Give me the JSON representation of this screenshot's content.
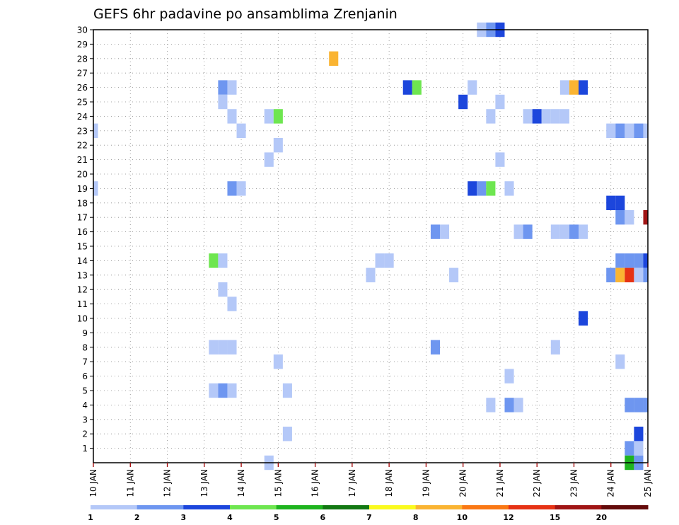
{
  "chart_data": {
    "type": "heatmap",
    "title": "GEFS 6hr padavine po ansamblima Zrenjanin",
    "x_tick_labels": [
      "10 JAN",
      "11 JAN",
      "12 JAN",
      "13 JAN",
      "14 JAN",
      "15 JAN",
      "16 JAN",
      "17 JAN",
      "18 JAN",
      "19 JAN",
      "20 JAN",
      "21 JAN",
      "22 JAN",
      "23 JAN",
      "24 JAN",
      "25 JAN"
    ],
    "y_tick_labels": [
      "1",
      "2",
      "3",
      "4",
      "5",
      "6",
      "7",
      "8",
      "9",
      "10",
      "11",
      "12",
      "13",
      "14",
      "15",
      "16",
      "17",
      "18",
      "19",
      "20",
      "21",
      "22",
      "23",
      "24",
      "25",
      "26",
      "27",
      "28",
      "29",
      "30"
    ],
    "x_range_steps": [
      0,
      60
    ],
    "y_range_members": [
      0,
      30
    ],
    "grid": "dotted",
    "colorbar": {
      "levels": [
        "1",
        "2",
        "3",
        "4",
        "5",
        "6",
        "7",
        "8",
        "10",
        "12",
        "15",
        "20"
      ],
      "colors": [
        "#b4c8f8",
        "#6e96f0",
        "#1c46dc",
        "#6ee650",
        "#1eb41e",
        "#127812",
        "#fafa1e",
        "#fab432",
        "#fa7814",
        "#e63214",
        "#a01414",
        "#640a0a"
      ]
    },
    "cells": [
      {
        "m": 30,
        "s": 42,
        "c": 0
      },
      {
        "m": 30,
        "s": 43,
        "c": 1
      },
      {
        "m": 30,
        "s": 44,
        "c": 2
      },
      {
        "m": 28,
        "s": 26,
        "c": 7
      },
      {
        "m": 26,
        "s": 14,
        "c": 1
      },
      {
        "m": 26,
        "s": 15,
        "c": 0
      },
      {
        "m": 26,
        "s": 34,
        "c": 2
      },
      {
        "m": 26,
        "s": 35,
        "c": 3
      },
      {
        "m": 26,
        "s": 41,
        "c": 0
      },
      {
        "m": 26,
        "s": 51,
        "c": 0
      },
      {
        "m": 26,
        "s": 52,
        "c": 7
      },
      {
        "m": 26,
        "s": 53,
        "c": 2
      },
      {
        "m": 25,
        "s": 14,
        "c": 0
      },
      {
        "m": 25,
        "s": 40,
        "c": 2
      },
      {
        "m": 25,
        "s": 44,
        "c": 0
      },
      {
        "m": 24,
        "s": 15,
        "c": 0
      },
      {
        "m": 24,
        "s": 19,
        "c": 0
      },
      {
        "m": 24,
        "s": 20,
        "c": 3
      },
      {
        "m": 24,
        "s": 43,
        "c": 0
      },
      {
        "m": 24,
        "s": 47,
        "c": 0
      },
      {
        "m": 24,
        "s": 48,
        "c": 2
      },
      {
        "m": 24,
        "s": 49,
        "c": 0
      },
      {
        "m": 24,
        "s": 50,
        "c": 0
      },
      {
        "m": 24,
        "s": 51,
        "c": 0
      },
      {
        "m": 23,
        "s": 0,
        "c": 0
      },
      {
        "m": 23,
        "s": 16,
        "c": 0
      },
      {
        "m": 23,
        "s": 56,
        "c": 0
      },
      {
        "m": 23,
        "s": 57,
        "c": 1
      },
      {
        "m": 23,
        "s": 58,
        "c": 0
      },
      {
        "m": 23,
        "s": 59,
        "c": 1
      },
      {
        "m": 23,
        "s": 60,
        "c": 0
      },
      {
        "m": 22,
        "s": 20,
        "c": 0
      },
      {
        "m": 21,
        "s": 19,
        "c": 0
      },
      {
        "m": 21,
        "s": 44,
        "c": 0
      },
      {
        "m": 19,
        "s": 0,
        "c": 0
      },
      {
        "m": 19,
        "s": 15,
        "c": 1
      },
      {
        "m": 19,
        "s": 16,
        "c": 0
      },
      {
        "m": 19,
        "s": 41,
        "c": 2
      },
      {
        "m": 19,
        "s": 42,
        "c": 1
      },
      {
        "m": 19,
        "s": 43,
        "c": 3
      },
      {
        "m": 19,
        "s": 45,
        "c": 0
      },
      {
        "m": 18,
        "s": 56,
        "c": 2
      },
      {
        "m": 18,
        "s": 57,
        "c": 2
      },
      {
        "m": 17,
        "s": 57,
        "c": 1
      },
      {
        "m": 17,
        "s": 58,
        "c": 0
      },
      {
        "m": 17,
        "s": 60,
        "c": 10
      },
      {
        "m": 16,
        "s": 37,
        "c": 1
      },
      {
        "m": 16,
        "s": 38,
        "c": 0
      },
      {
        "m": 16,
        "s": 46,
        "c": 0
      },
      {
        "m": 16,
        "s": 47,
        "c": 1
      },
      {
        "m": 16,
        "s": 50,
        "c": 0
      },
      {
        "m": 16,
        "s": 51,
        "c": 0
      },
      {
        "m": 16,
        "s": 52,
        "c": 1
      },
      {
        "m": 16,
        "s": 53,
        "c": 0
      },
      {
        "m": 14,
        "s": 13,
        "c": 3
      },
      {
        "m": 14,
        "s": 14,
        "c": 0
      },
      {
        "m": 14,
        "s": 31,
        "c": 0
      },
      {
        "m": 14,
        "s": 32,
        "c": 0
      },
      {
        "m": 14,
        "s": 57,
        "c": 1
      },
      {
        "m": 14,
        "s": 58,
        "c": 1
      },
      {
        "m": 14,
        "s": 59,
        "c": 1
      },
      {
        "m": 14,
        "s": 60,
        "c": 2
      },
      {
        "m": 13,
        "s": 30,
        "c": 0
      },
      {
        "m": 13,
        "s": 39,
        "c": 0
      },
      {
        "m": 13,
        "s": 56,
        "c": 1
      },
      {
        "m": 13,
        "s": 57,
        "c": 7
      },
      {
        "m": 13,
        "s": 58,
        "c": 9
      },
      {
        "m": 13,
        "s": 59,
        "c": 0
      },
      {
        "m": 13,
        "s": 60,
        "c": 1
      },
      {
        "m": 12,
        "s": 14,
        "c": 0
      },
      {
        "m": 11,
        "s": 15,
        "c": 0
      },
      {
        "m": 10,
        "s": 53,
        "c": 2
      },
      {
        "m": 8,
        "s": 13,
        "c": 0
      },
      {
        "m": 8,
        "s": 14,
        "c": 0
      },
      {
        "m": 8,
        "s": 15,
        "c": 0
      },
      {
        "m": 8,
        "s": 37,
        "c": 1
      },
      {
        "m": 8,
        "s": 50,
        "c": 0
      },
      {
        "m": 7,
        "s": 20,
        "c": 0
      },
      {
        "m": 7,
        "s": 57,
        "c": 0
      },
      {
        "m": 6,
        "s": 45,
        "c": 0
      },
      {
        "m": 5,
        "s": 13,
        "c": 0
      },
      {
        "m": 5,
        "s": 14,
        "c": 1
      },
      {
        "m": 5,
        "s": 15,
        "c": 0
      },
      {
        "m": 5,
        "s": 21,
        "c": 0
      },
      {
        "m": 4,
        "s": 43,
        "c": 0
      },
      {
        "m": 4,
        "s": 45,
        "c": 1
      },
      {
        "m": 4,
        "s": 46,
        "c": 0
      },
      {
        "m": 4,
        "s": 58,
        "c": 1
      },
      {
        "m": 4,
        "s": 59,
        "c": 1
      },
      {
        "m": 4,
        "s": 60,
        "c": 1
      },
      {
        "m": 2,
        "s": 21,
        "c": 0
      },
      {
        "m": 2,
        "s": 59,
        "c": 2
      },
      {
        "m": 1,
        "s": 58,
        "c": 1
      },
      {
        "m": 1,
        "s": 59,
        "c": 0
      },
      {
        "m": 0,
        "s": 19,
        "c": 0
      },
      {
        "m": 0,
        "s": 58,
        "c": 4
      },
      {
        "m": 0,
        "s": 59,
        "c": 1
      }
    ]
  }
}
